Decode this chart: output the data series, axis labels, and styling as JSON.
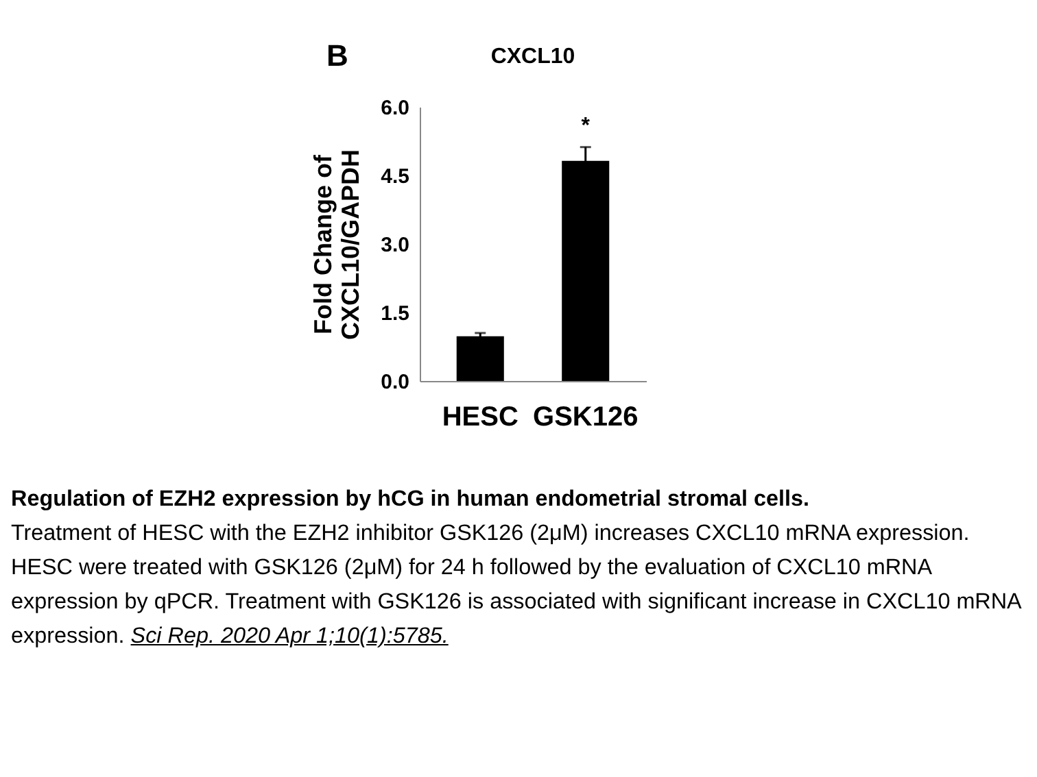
{
  "chart_data": {
    "type": "bar",
    "title": "CXCL10",
    "ylabel": "Fold Change of\nCXCL10/GAPDH",
    "categories": [
      "HESC",
      "GSK126"
    ],
    "values": [
      0.98,
      4.82
    ],
    "errors": [
      0.07,
      0.3
    ],
    "color": "#000000",
    "ylim": [
      0,
      6
    ],
    "yticks": [
      {
        "value": 0,
        "label": "0.0"
      },
      {
        "value": 1.5,
        "label": "1.5"
      },
      {
        "value": 3,
        "label": "3.0"
      },
      {
        "value": 4.5,
        "label": "4.5"
      },
      {
        "value": 6,
        "label": "6.0"
      }
    ],
    "grid": false,
    "annotations": [
      {
        "text": "B"
      },
      {
        "text": "*",
        "x": "GSK126",
        "y": 5.12
      },
      {
        "text": "Regulation of EZH2 expression by hCG in human endometrial stromal cells."
      },
      {
        "text": "Treatment of HESC with the EZH2 inhibitor GSK126 (2μM) increases CXCL10 mRNA expression. HESC were treated with GSK126 (2μM) for 24 h followed by the evaluation of CXCL10 mRNA expression by qPCR. Treatment with GSK126 is associated with significant increase in CXCL10 mRNA expression."
      },
      {
        "text": "Sci Rep. 2020 Apr 1;10(1):5785."
      }
    ]
  }
}
